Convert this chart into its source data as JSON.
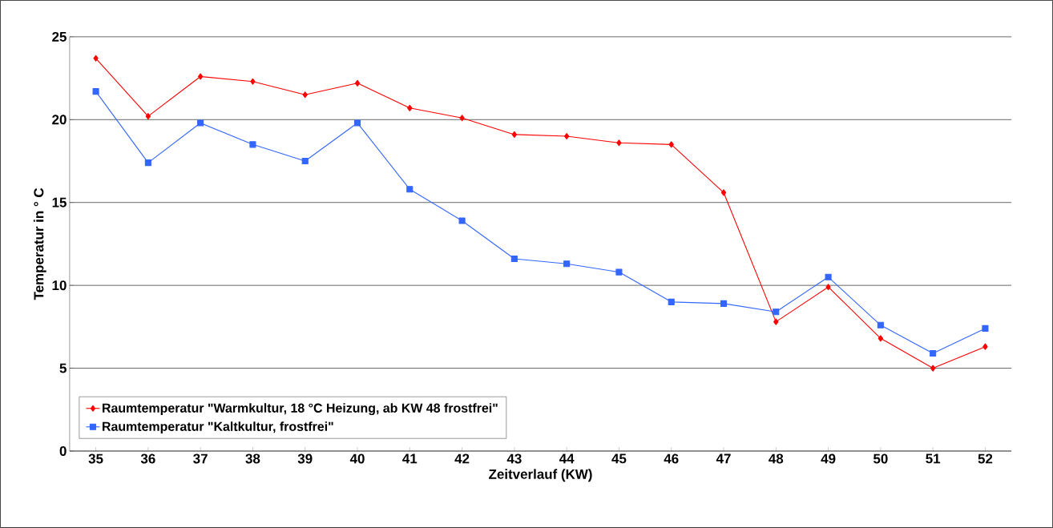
{
  "chart_data": {
    "type": "line",
    "xlabel": "Zeitverlauf (KW)",
    "ylabel": "Temperatur in ° C",
    "categories": [
      "35",
      "36",
      "37",
      "38",
      "39",
      "40",
      "41",
      "42",
      "43",
      "44",
      "45",
      "46",
      "47",
      "48",
      "49",
      "50",
      "51",
      "52"
    ],
    "series": [
      {
        "name": "Raumtemperatur \"Warmkultur, 18 °C Heizung, ab KW 48 frostfrei\"",
        "color": "#ff0000",
        "marker": "diamond",
        "values": [
          23.7,
          20.2,
          22.6,
          22.3,
          21.5,
          22.2,
          20.7,
          20.1,
          19.1,
          19.0,
          18.6,
          18.5,
          15.6,
          7.8,
          9.9,
          6.8,
          5.0,
          6.3
        ]
      },
      {
        "name": "Raumtemperatur \"Kaltkultur, frostfrei\"",
        "color": "#3366ff",
        "marker": "square",
        "values": [
          21.7,
          17.4,
          19.8,
          18.5,
          17.5,
          19.8,
          15.8,
          13.9,
          11.6,
          11.3,
          10.8,
          9.0,
          8.9,
          8.4,
          10.5,
          7.6,
          5.9,
          7.4
        ]
      }
    ],
    "ylim": [
      0,
      25
    ],
    "yticks": [
      0,
      5,
      10,
      15,
      20,
      25
    ],
    "grid": "y",
    "legend": "bottom left",
    "line_style": "solid"
  }
}
